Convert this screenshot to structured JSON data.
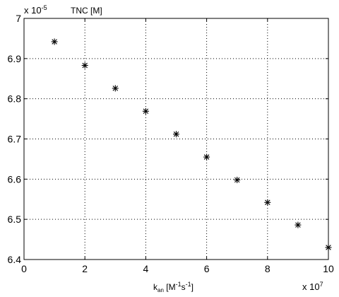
{
  "chart_data": {
    "type": "scatter",
    "title": "",
    "xlabel": {
      "k": "k",
      "sub": "an",
      "bracket_open": " [M",
      "sup1": "-1",
      "mid": "s",
      "sup2": "-1",
      "bracket_close": "]"
    },
    "ylabel": "TNC [M]",
    "x_exponent": {
      "base": "x 10",
      "power": "7"
    },
    "y_exponent": {
      "base": "x 10",
      "power": "-5"
    },
    "xlim": [
      0,
      10
    ],
    "ylim": [
      6.4,
      7.0
    ],
    "xticks": [
      "0",
      "2",
      "4",
      "6",
      "8",
      "10"
    ],
    "yticks": [
      "6.4",
      "6.5",
      "6.6",
      "6.7",
      "6.8",
      "6.9",
      "7"
    ],
    "grid": true,
    "grid_style": "dotted",
    "marker": "*",
    "marker_color": "#000000",
    "x": [
      1,
      2,
      3,
      4,
      5,
      6,
      7,
      8,
      9,
      10
    ],
    "y": [
      6.942,
      6.883,
      6.826,
      6.769,
      6.712,
      6.655,
      6.598,
      6.542,
      6.486,
      6.43
    ]
  }
}
